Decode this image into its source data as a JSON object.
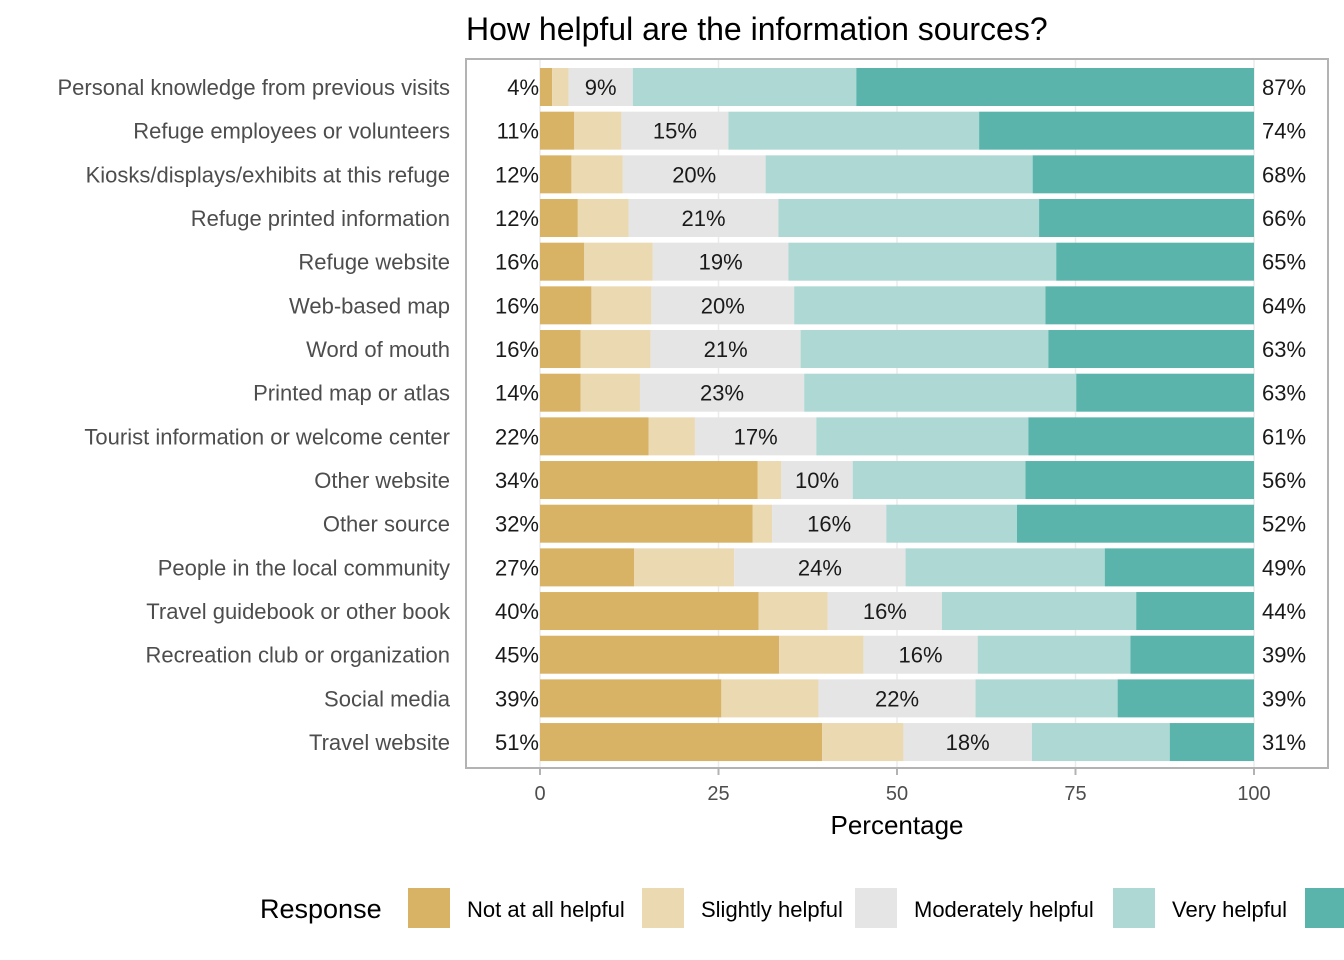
{
  "chart_data": {
    "type": "bar",
    "orientation": "horizontal-stacked",
    "title": "How helpful are the information sources?",
    "xlabel": "Percentage",
    "ylabel": "",
    "xlim": [
      0,
      100
    ],
    "x_ticks": [
      "0",
      "25",
      "50",
      "75",
      "100"
    ],
    "x_tick_values": [
      0,
      25,
      50,
      75,
      100
    ],
    "legend_title": "Response",
    "legend_position": "bottom",
    "series": [
      {
        "name": "Not at all helpful",
        "color": "#d8b365"
      },
      {
        "name": "Slightly helpful",
        "color": "#ebd9b2"
      },
      {
        "name": "Moderately helpful",
        "color": "#e5e5e5"
      },
      {
        "name": "Very helpful",
        "color": "#aed8d4"
      },
      {
        "name": "",
        "color": "#5ab4ac"
      }
    ],
    "categories": [
      "Personal knowledge from previous visits",
      "Refuge employees or volunteers",
      "Kiosks/displays/exhibits at this refuge",
      "Refuge printed information",
      "Refuge website",
      "Web-based map",
      "Word of mouth",
      "Printed map or atlas",
      "Tourist information or welcome center",
      "Other website",
      "Other source",
      "People in the local community",
      "Travel guidebook or other book",
      "Recreation club or organization",
      "Social media",
      "Travel website"
    ],
    "values": [
      [
        1.7,
        2.3,
        9.0,
        31.3,
        55.7
      ],
      [
        4.8,
        6.6,
        15.0,
        35.1,
        38.5
      ],
      [
        4.4,
        7.2,
        20.0,
        37.4,
        31.0
      ],
      [
        5.3,
        7.1,
        21.0,
        36.5,
        30.1
      ],
      [
        6.2,
        9.6,
        19.0,
        37.5,
        27.7
      ],
      [
        7.2,
        8.4,
        20.0,
        35.2,
        29.2
      ],
      [
        5.7,
        9.8,
        21.0,
        34.7,
        28.8
      ],
      [
        5.7,
        8.3,
        23.0,
        38.1,
        24.9
      ],
      [
        15.2,
        6.5,
        17.0,
        29.7,
        31.6
      ],
      [
        30.5,
        3.3,
        10.0,
        24.2,
        32.0
      ],
      [
        29.8,
        2.7,
        16.0,
        18.3,
        33.2
      ],
      [
        13.2,
        14.0,
        24.0,
        27.9,
        20.9
      ],
      [
        30.6,
        9.7,
        16.0,
        27.2,
        16.5
      ],
      [
        33.5,
        11.8,
        16.0,
        21.4,
        17.3
      ],
      [
        25.4,
        13.6,
        22.0,
        19.9,
        19.1
      ],
      [
        39.5,
        11.4,
        18.0,
        19.3,
        11.8
      ]
    ],
    "left_labels": [
      "4%",
      "11%",
      "12%",
      "12%",
      "16%",
      "16%",
      "16%",
      "14%",
      "22%",
      "34%",
      "32%",
      "27%",
      "40%",
      "45%",
      "39%",
      "51%"
    ],
    "center_labels": [
      "9%",
      "15%",
      "20%",
      "21%",
      "19%",
      "20%",
      "21%",
      "23%",
      "17%",
      "10%",
      "16%",
      "24%",
      "16%",
      "16%",
      "22%",
      "18%"
    ],
    "right_labels": [
      "87%",
      "74%",
      "68%",
      "66%",
      "65%",
      "64%",
      "63%",
      "63%",
      "61%",
      "56%",
      "52%",
      "49%",
      "44%",
      "39%",
      "39%",
      "31%"
    ],
    "grid": true
  }
}
